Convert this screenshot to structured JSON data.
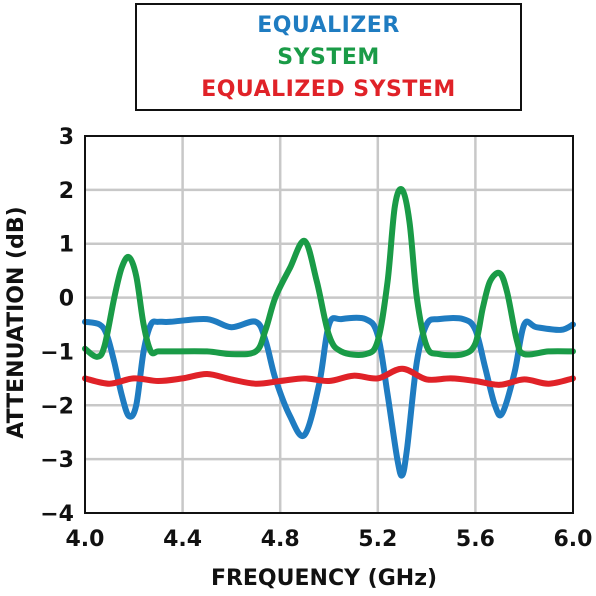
{
  "chart_data": {
    "type": "line",
    "xlabel": "FREQUENCY (GHz)",
    "ylabel": "ATTENUATION (dB)",
    "xlim": [
      4.0,
      6.0
    ],
    "ylim": [
      -4,
      3
    ],
    "x_ticks": [
      4.0,
      4.4,
      4.8,
      5.2,
      5.6,
      6.0
    ],
    "x_tick_labels": [
      "4.0",
      "4.4",
      "4.8",
      "5.2",
      "5.6",
      "6.0"
    ],
    "y_ticks": [
      3,
      2,
      1,
      0,
      -1,
      -2,
      -3,
      -4
    ],
    "y_tick_labels": [
      "3",
      "2",
      "1",
      "0",
      "−1",
      "−2",
      "−3",
      "−4"
    ],
    "grid": true,
    "legend_position": "top",
    "series": [
      {
        "name": "EQUALIZER",
        "color": "#1f7cc1",
        "x": [
          4.0,
          4.06,
          4.09,
          4.12,
          4.15,
          4.18,
          4.21,
          4.24,
          4.27,
          4.3,
          4.35,
          4.5,
          4.6,
          4.7,
          4.74,
          4.78,
          4.84,
          4.9,
          4.96,
          5.0,
          5.05,
          5.15,
          5.2,
          5.24,
          5.28,
          5.3,
          5.32,
          5.36,
          5.4,
          5.45,
          5.55,
          5.6,
          5.64,
          5.68,
          5.71,
          5.76,
          5.8,
          5.85,
          5.95,
          6.0
        ],
        "y": [
          -0.45,
          -0.5,
          -0.7,
          -1.2,
          -1.8,
          -2.2,
          -2.0,
          -1.0,
          -0.5,
          -0.45,
          -0.45,
          -0.4,
          -0.55,
          -0.45,
          -0.8,
          -1.5,
          -2.2,
          -2.55,
          -1.6,
          -0.5,
          -0.4,
          -0.4,
          -0.7,
          -1.8,
          -3.0,
          -3.3,
          -2.8,
          -1.2,
          -0.5,
          -0.4,
          -0.4,
          -0.6,
          -1.3,
          -2.0,
          -2.15,
          -1.4,
          -0.5,
          -0.55,
          -0.6,
          -0.5
        ]
      },
      {
        "name": "SYSTEM",
        "color": "#1a9b47",
        "x": [
          4.0,
          4.05,
          4.08,
          4.12,
          4.15,
          4.18,
          4.21,
          4.24,
          4.27,
          4.3,
          4.35,
          4.5,
          4.6,
          4.7,
          4.74,
          4.78,
          4.84,
          4.9,
          4.95,
          5.0,
          5.05,
          5.15,
          5.2,
          5.24,
          5.27,
          5.3,
          5.33,
          5.36,
          5.4,
          5.45,
          5.55,
          5.6,
          5.63,
          5.66,
          5.7,
          5.73,
          5.77,
          5.8,
          5.9,
          6.0
        ],
        "y": [
          -0.95,
          -1.1,
          -0.9,
          0.0,
          0.55,
          0.75,
          0.4,
          -0.5,
          -1.0,
          -1.0,
          -1.0,
          -1.0,
          -1.05,
          -1.0,
          -0.6,
          0.0,
          0.55,
          1.05,
          0.3,
          -0.7,
          -1.0,
          -1.05,
          -0.8,
          0.3,
          1.7,
          2.0,
          1.4,
          0.0,
          -0.9,
          -1.05,
          -1.05,
          -0.85,
          -0.2,
          0.3,
          0.45,
          0.1,
          -0.8,
          -1.05,
          -1.0,
          -1.0
        ]
      },
      {
        "name": "EQUALIZED SYSTEM",
        "color": "#e02228",
        "x": [
          4.0,
          4.1,
          4.2,
          4.3,
          4.4,
          4.5,
          4.6,
          4.7,
          4.8,
          4.9,
          5.0,
          5.1,
          5.2,
          5.3,
          5.4,
          5.5,
          5.6,
          5.7,
          5.8,
          5.9,
          6.0
        ],
        "y": [
          -1.5,
          -1.6,
          -1.5,
          -1.55,
          -1.5,
          -1.42,
          -1.52,
          -1.6,
          -1.55,
          -1.5,
          -1.55,
          -1.45,
          -1.5,
          -1.32,
          -1.52,
          -1.5,
          -1.55,
          -1.62,
          -1.52,
          -1.6,
          -1.5
        ]
      }
    ]
  }
}
